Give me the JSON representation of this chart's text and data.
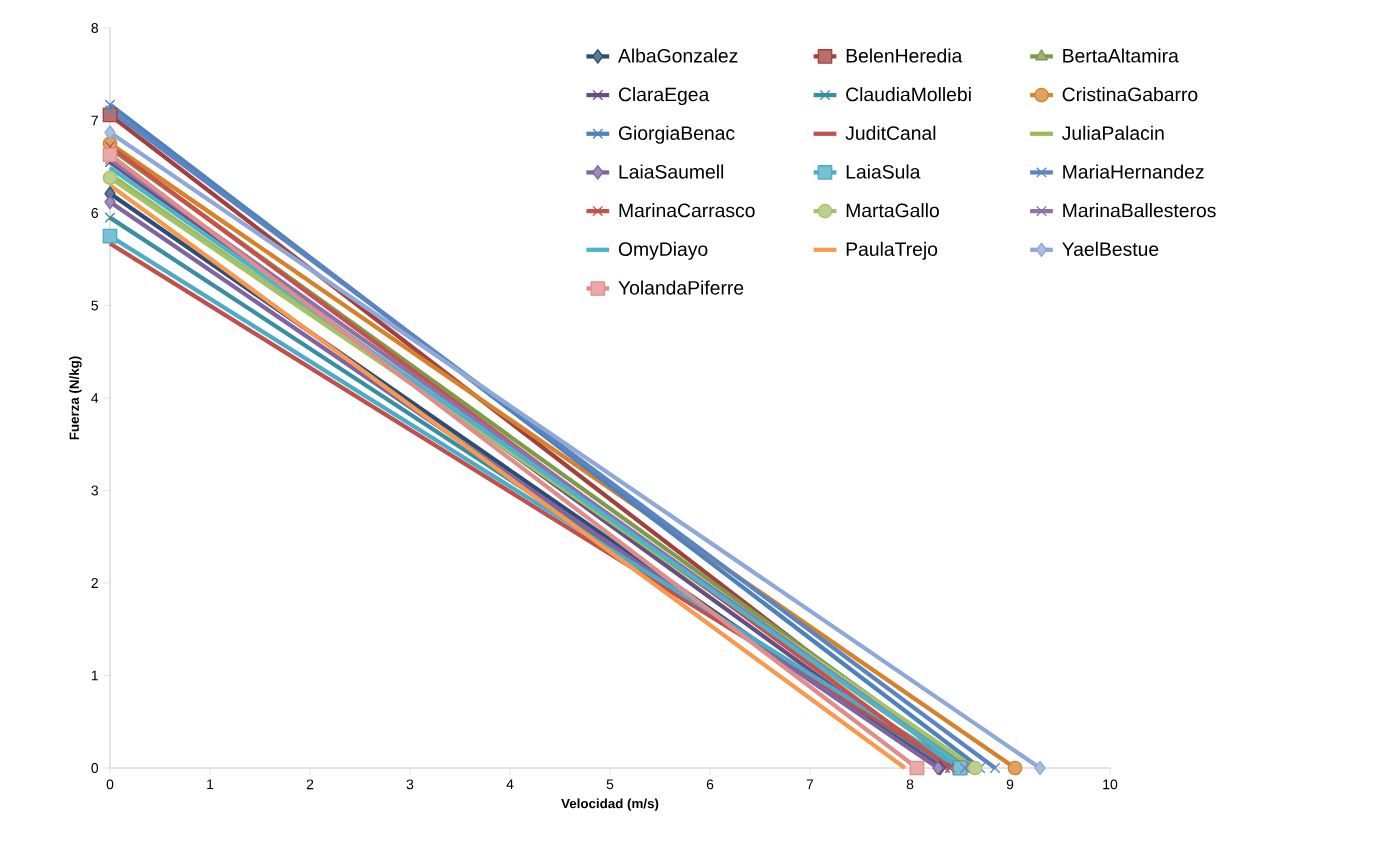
{
  "chart_data": {
    "type": "line",
    "xlabel": "Velocidad (m/s)",
    "ylabel": "Fuerza (N/kg)",
    "xlim": [
      0,
      10
    ],
    "ylim": [
      0,
      8
    ],
    "xticks": [
      0,
      1,
      2,
      3,
      4,
      5,
      6,
      7,
      8,
      9,
      10
    ],
    "yticks": [
      0,
      1,
      2,
      3,
      4,
      5,
      6,
      7,
      8
    ],
    "grid": false,
    "legend": "top right",
    "series": [
      {
        "name": "AlbaGonzalez",
        "color": "#2c4d75",
        "marker": "diamond",
        "x": [
          0,
          8.3
        ],
        "values": [
          6.21,
          0
        ]
      },
      {
        "name": "BelenHeredia",
        "color": "#a2403d",
        "marker": "square",
        "x": [
          0,
          8.5
        ],
        "values": [
          7.06,
          0
        ]
      },
      {
        "name": "BertaAltamira",
        "color": "#7f9a48",
        "marker": "triangle",
        "x": [
          0,
          8.6
        ],
        "values": [
          6.7,
          0
        ]
      },
      {
        "name": "ClaraEgea",
        "color": "#664f84",
        "marker": "cross",
        "x": [
          0,
          8.35
        ],
        "values": [
          6.55,
          0
        ]
      },
      {
        "name": "ClaudiaMollebi",
        "color": "#3a8ea1",
        "marker": "cross",
        "x": [
          0,
          8.4
        ],
        "values": [
          5.95,
          0
        ]
      },
      {
        "name": "CristinaGabarro",
        "color": "#d7822b",
        "marker": "circle",
        "x": [
          0,
          9.05
        ],
        "values": [
          6.75,
          0
        ]
      },
      {
        "name": "GiorgiaBenac",
        "color": "#4f81bd",
        "marker": "cross",
        "x": [
          0,
          8.7
        ],
        "values": [
          7.17,
          0
        ]
      },
      {
        "name": "JuditCanal",
        "color": "#c0504d",
        "marker": "none",
        "x": [
          0,
          8.45
        ],
        "values": [
          5.67,
          0
        ]
      },
      {
        "name": "JuliaPalacin",
        "color": "#9bbb59",
        "marker": "none",
        "x": [
          0,
          8.55
        ],
        "values": [
          6.42,
          0
        ]
      },
      {
        "name": "LaiaSaumell",
        "color": "#8064a2",
        "marker": "diamond",
        "x": [
          0,
          8.28
        ],
        "values": [
          6.12,
          0
        ]
      },
      {
        "name": "LaiaSula",
        "color": "#4bacc6",
        "marker": "square",
        "x": [
          0,
          8.5
        ],
        "values": [
          5.75,
          0
        ]
      },
      {
        "name": "MariaHernandez",
        "color": "#5a85c0",
        "marker": "cross",
        "x": [
          0,
          8.85
        ],
        "values": [
          7.11,
          0
        ]
      },
      {
        "name": "MarinaCarrasco",
        "color": "#c8504d",
        "marker": "cross",
        "x": [
          0,
          8.4
        ],
        "values": [
          6.72,
          0
        ]
      },
      {
        "name": "MartaGallo",
        "color": "#a5c26b",
        "marker": "circle",
        "x": [
          0,
          8.65
        ],
        "values": [
          6.38,
          0
        ]
      },
      {
        "name": "MarinaBallesteros",
        "color": "#8c73aa",
        "marker": "cross",
        "x": [
          0,
          8.55
        ],
        "values": [
          6.58,
          0
        ]
      },
      {
        "name": "OmyDiayo",
        "color": "#4bb4cc",
        "marker": "none",
        "x": [
          0,
          8.55
        ],
        "values": [
          6.49,
          0
        ]
      },
      {
        "name": "PaulaTrejo",
        "color": "#f79a50",
        "marker": "none",
        "x": [
          0,
          7.95
        ],
        "values": [
          6.3,
          0
        ]
      },
      {
        "name": "YaelBestue",
        "color": "#8ea9d7",
        "marker": "diamond",
        "x": [
          0,
          9.3
        ],
        "values": [
          6.87,
          0
        ]
      },
      {
        "name": "YolandaPiferre",
        "color": "#e08c8a",
        "marker": "square",
        "x": [
          0,
          8.07
        ],
        "values": [
          6.63,
          0
        ]
      }
    ]
  }
}
